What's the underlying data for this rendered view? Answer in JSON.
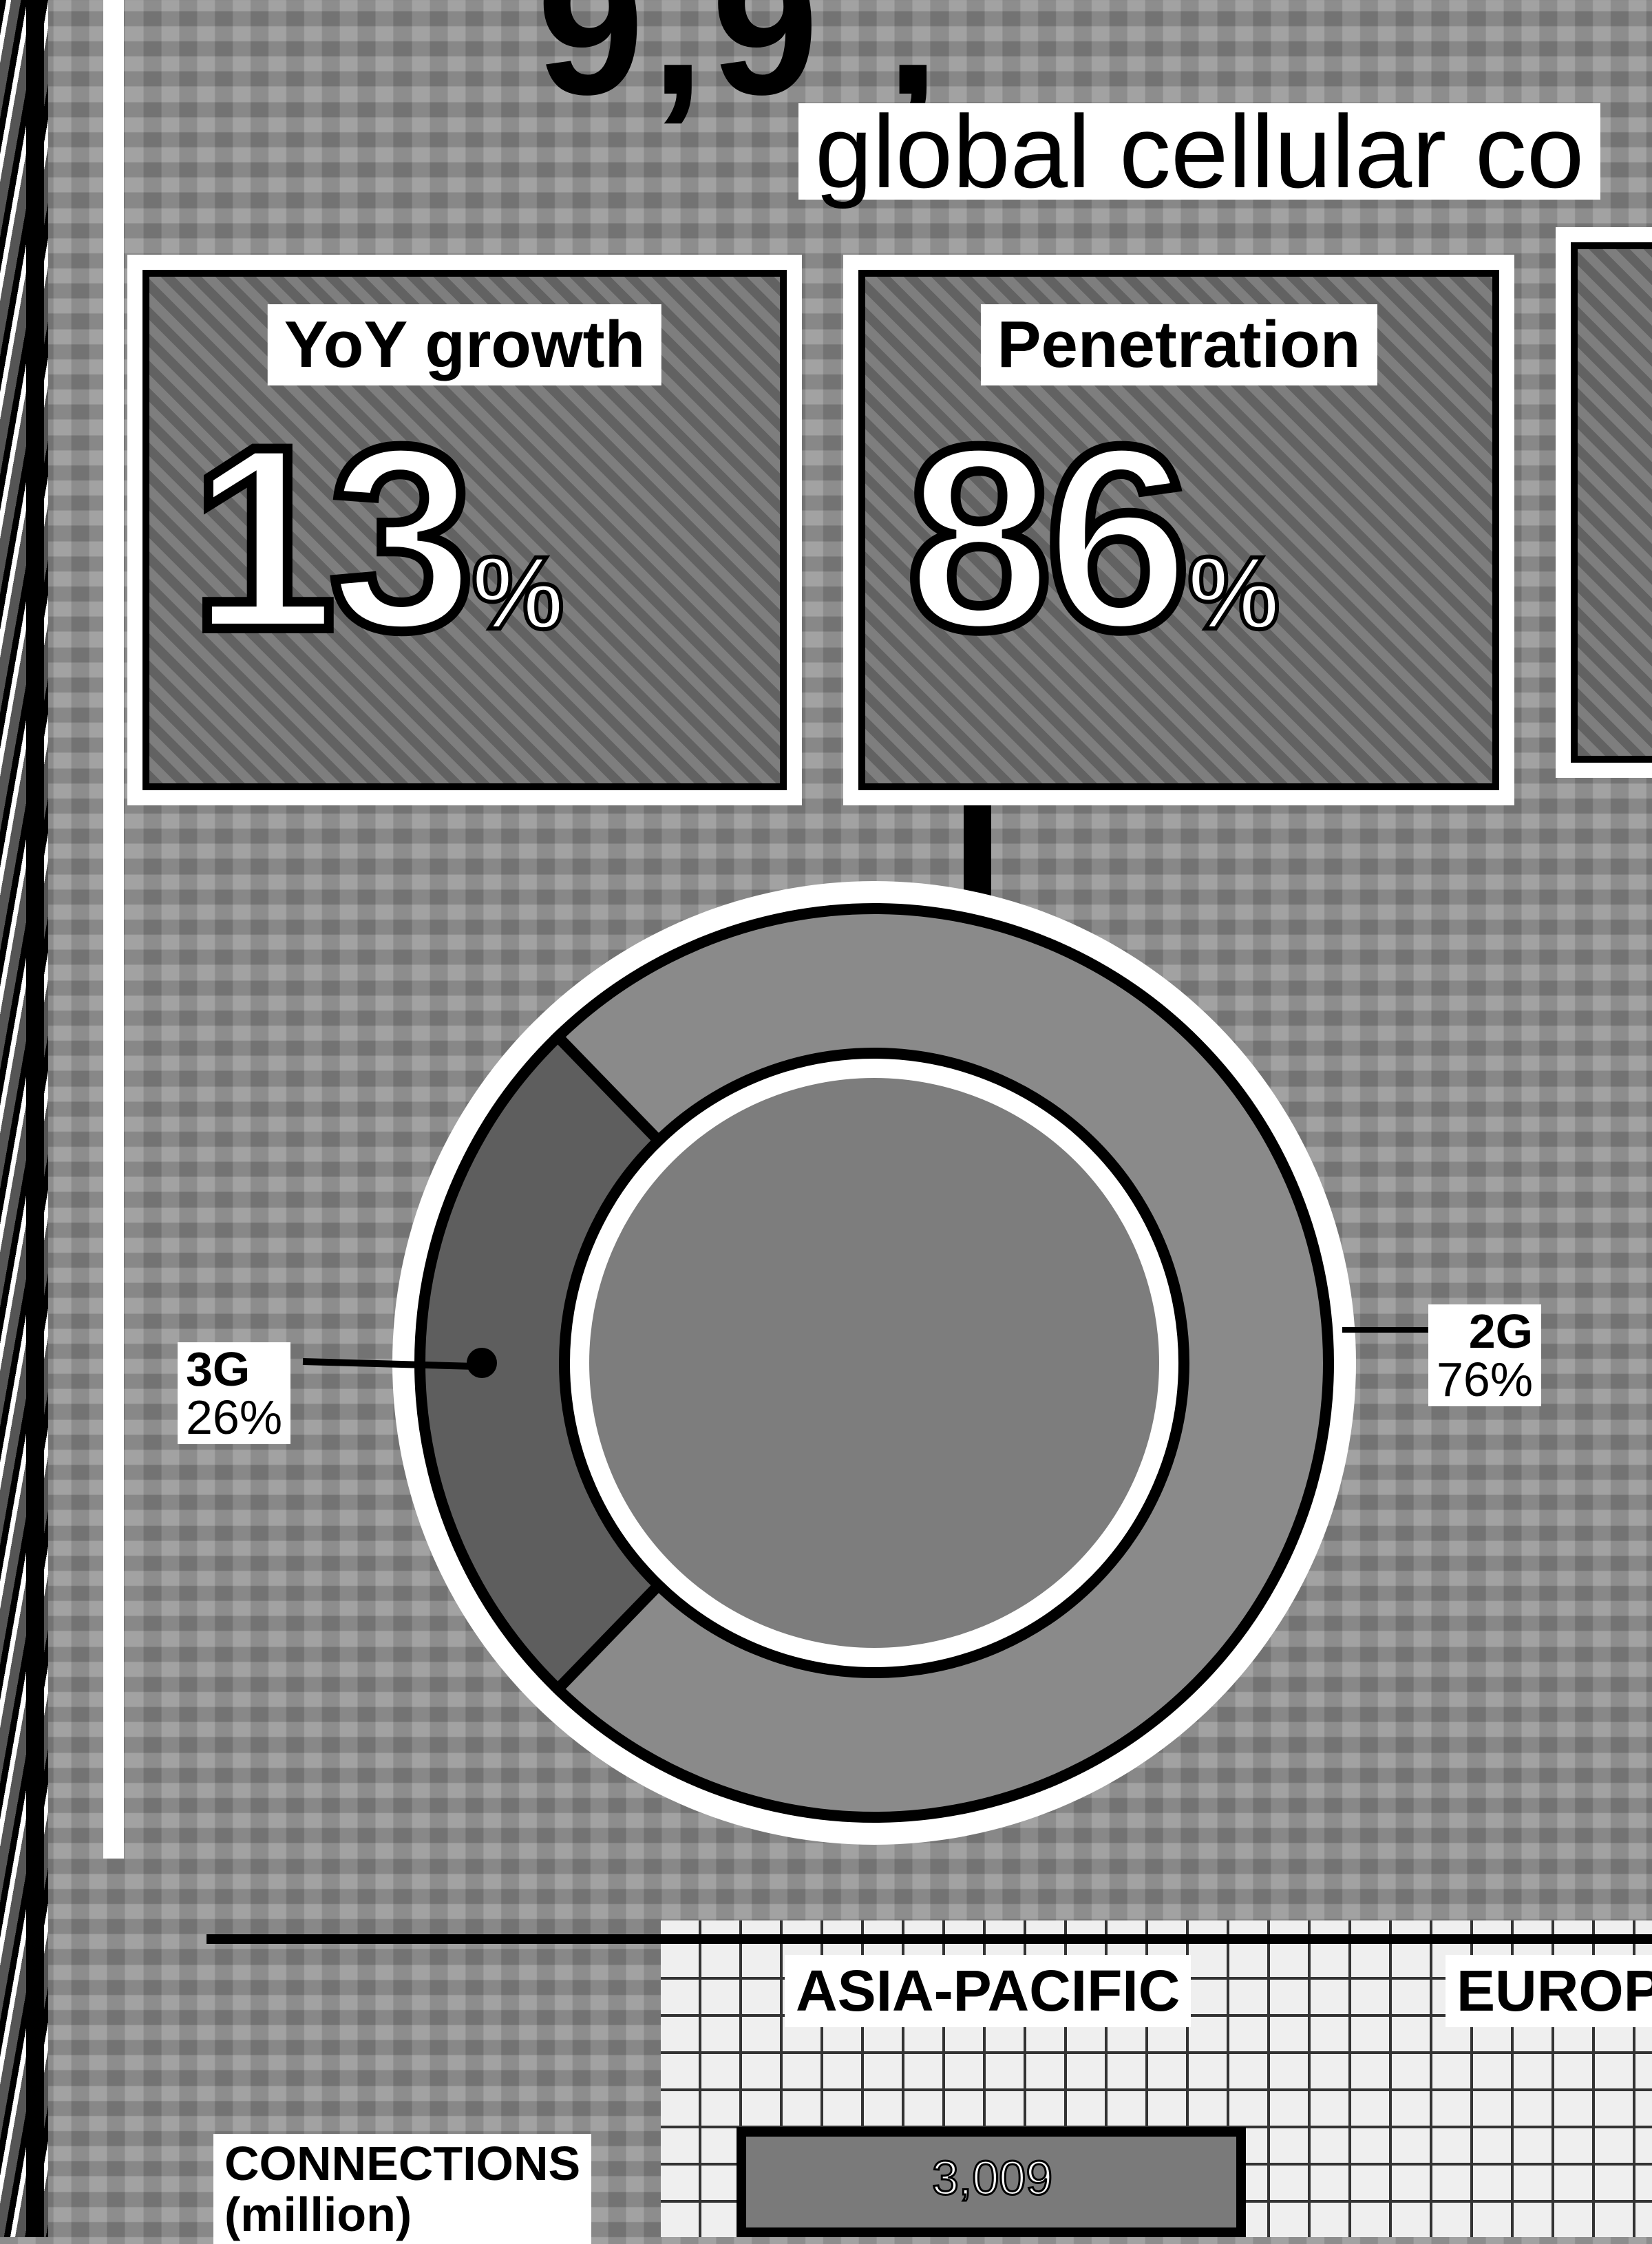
{
  "headline": {
    "figure_partial": "9,9 ,",
    "subtitle": "global cellular co"
  },
  "kpis": [
    {
      "label": "YoY growth",
      "value": "13",
      "unit": "%"
    },
    {
      "label": "Penetration",
      "value": "86",
      "unit": "%"
    }
  ],
  "chart_data": {
    "type": "pie",
    "style": "donut",
    "title": "",
    "series": [
      {
        "name": "3G",
        "label": "3G",
        "value": 26,
        "display": "26%"
      },
      {
        "name": "2G",
        "label": "2G",
        "value": 76,
        "display": "76%"
      }
    ]
  },
  "table": {
    "regions": [
      "ASIA-PACIFIC",
      "EUROP"
    ],
    "rows": [
      {
        "label_line1": "CONNECTIONS",
        "label_line2": "(million)",
        "values": [
          "3,009"
        ]
      }
    ]
  },
  "colors": {
    "ink": "#000000",
    "paper": "#ffffff",
    "ground": "#8e8e8e"
  }
}
